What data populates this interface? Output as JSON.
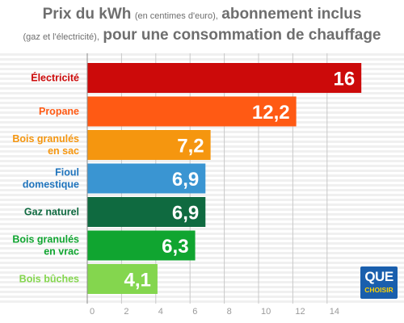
{
  "title": {
    "part1": "Prix du kWh",
    "part2": "(en centimes d'euro),",
    "part3": "abonnement inclus",
    "part4": "(gaz et l'électricité),",
    "part5": "pour une consommation de chauffage"
  },
  "logo": {
    "line1": "QUE",
    "line2": "CHOISIR"
  },
  "chart_data": {
    "type": "bar",
    "orientation": "horizontal",
    "categories": [
      [
        "Électricité"
      ],
      [
        "Propane"
      ],
      [
        "Bois granulés",
        "en sac"
      ],
      [
        "Fioul",
        "domestique"
      ],
      [
        "Gaz naturel"
      ],
      [
        "Bois granulés",
        "en vrac"
      ],
      [
        "Bois bûches"
      ]
    ],
    "values": [
      16,
      12.2,
      7.2,
      6.9,
      6.9,
      6.3,
      4.1
    ],
    "value_labels": [
      "16",
      "12,2",
      "7,2",
      "6,9",
      "6,9",
      "6,3",
      "4,1"
    ],
    "colors": [
      "#cc0a0a",
      "#ff5a14",
      "#f5960f",
      "#3a95d2",
      "#0f6a40",
      "#10a530",
      "#84d64e"
    ],
    "label_colors": [
      "#cc0a0a",
      "#ff5a14",
      "#f5960f",
      "#1e73bc",
      "#0f6a40",
      "#10a530",
      "#84d64e"
    ],
    "xlim": [
      0,
      14.5
    ],
    "xticks": [
      "0",
      "2",
      "4",
      "6",
      "8",
      "10",
      "12",
      "14"
    ],
    "grid": true,
    "legend": "none"
  }
}
